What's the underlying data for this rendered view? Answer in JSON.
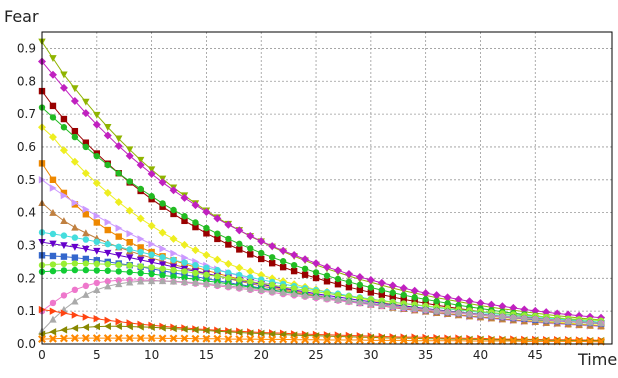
{
  "chart_data": {
    "type": "line",
    "title": "",
    "xlabel": "Time",
    "ylabel": "Fear",
    "xlim": [
      0,
      52
    ],
    "ylim": [
      0,
      0.95
    ],
    "x_ticks": [
      "0",
      "5",
      "10",
      "15",
      "20",
      "25",
      "30",
      "35",
      "40",
      "45"
    ],
    "y_ticks": [
      "0.0",
      "0.1",
      "0.2",
      "0.3",
      "0.4",
      "0.5",
      "0.6",
      "0.7",
      "0.8",
      "0.9"
    ],
    "grid": true,
    "legend": "none",
    "x": [
      0,
      1,
      2,
      3,
      4,
      5,
      6,
      7,
      8,
      9,
      10,
      11,
      12,
      13,
      14,
      15,
      16,
      17,
      18,
      19,
      20,
      21,
      22,
      23,
      24,
      25,
      26,
      27,
      28,
      29,
      30,
      31,
      32,
      33,
      34,
      35,
      36,
      37,
      38,
      39,
      40,
      41,
      42,
      43,
      44,
      45,
      46,
      47,
      48,
      49,
      50,
      51
    ],
    "series": [
      {
        "color": "#8fb400",
        "marker": "triangle-down",
        "values": [
          0.92,
          0.87,
          0.82,
          0.778,
          0.737,
          0.697,
          0.66,
          0.625,
          0.592,
          0.56,
          0.531,
          0.503,
          0.476,
          0.452,
          0.428,
          0.406,
          0.385,
          0.365,
          0.346,
          0.328,
          0.312,
          0.296,
          0.281,
          0.267,
          0.254,
          0.241,
          0.229,
          0.218,
          0.207,
          0.197,
          0.188,
          0.179,
          0.17,
          0.162,
          0.155,
          0.148,
          0.141,
          0.135,
          0.129,
          0.123,
          0.117,
          0.112,
          0.107,
          0.103,
          0.098,
          0.094,
          0.09,
          0.086,
          0.083,
          0.079,
          0.076,
          0.073
        ]
      },
      {
        "color": "#c020c0",
        "marker": "diamond",
        "values": [
          0.86,
          0.82,
          0.78,
          0.74,
          0.703,
          0.668,
          0.635,
          0.603,
          0.573,
          0.545,
          0.518,
          0.492,
          0.468,
          0.445,
          0.423,
          0.402,
          0.382,
          0.363,
          0.346,
          0.329,
          0.313,
          0.298,
          0.284,
          0.271,
          0.258,
          0.246,
          0.234,
          0.224,
          0.213,
          0.204,
          0.195,
          0.186,
          0.178,
          0.17,
          0.162,
          0.155,
          0.149,
          0.142,
          0.136,
          0.13,
          0.125,
          0.12,
          0.115,
          0.11,
          0.105,
          0.101,
          0.097,
          0.093,
          0.09,
          0.086,
          0.083,
          0.08
        ]
      },
      {
        "color": "#990000",
        "marker": "square",
        "values": [
          0.77,
          0.725,
          0.685,
          0.648,
          0.613,
          0.58,
          0.549,
          0.52,
          0.492,
          0.466,
          0.441,
          0.418,
          0.396,
          0.375,
          0.356,
          0.337,
          0.32,
          0.303,
          0.288,
          0.273,
          0.259,
          0.246,
          0.234,
          0.222,
          0.211,
          0.201,
          0.191,
          0.182,
          0.173,
          0.165,
          0.157,
          0.15,
          0.143,
          0.136,
          0.13,
          0.124,
          0.118,
          0.113,
          0.108,
          0.103,
          0.099,
          0.094,
          0.09,
          0.087,
          0.083,
          0.08,
          0.076,
          0.073,
          0.07,
          0.068,
          0.065,
          0.063
        ]
      },
      {
        "color": "#22bb22",
        "marker": "circle",
        "values": [
          0.72,
          0.69,
          0.66,
          0.63,
          0.6,
          0.572,
          0.545,
          0.52,
          0.495,
          0.472,
          0.45,
          0.428,
          0.408,
          0.389,
          0.37,
          0.353,
          0.336,
          0.32,
          0.305,
          0.291,
          0.277,
          0.264,
          0.252,
          0.24,
          0.229,
          0.218,
          0.208,
          0.198,
          0.189,
          0.18,
          0.172,
          0.164,
          0.156,
          0.149,
          0.142,
          0.136,
          0.13,
          0.124,
          0.118,
          0.113,
          0.108,
          0.103,
          0.098,
          0.094,
          0.09,
          0.086,
          0.082,
          0.079,
          0.075,
          0.072,
          0.069,
          0.066
        ]
      },
      {
        "color": "#eeee20",
        "marker": "diamond",
        "values": [
          0.66,
          0.63,
          0.59,
          0.555,
          0.52,
          0.49,
          0.46,
          0.432,
          0.406,
          0.382,
          0.36,
          0.339,
          0.32,
          0.302,
          0.286,
          0.271,
          0.257,
          0.244,
          0.232,
          0.221,
          0.21,
          0.2,
          0.191,
          0.182,
          0.174,
          0.166,
          0.159,
          0.152,
          0.145,
          0.139,
          0.133,
          0.127,
          0.122,
          0.117,
          0.112,
          0.107,
          0.103,
          0.099,
          0.095,
          0.091,
          0.087,
          0.084,
          0.081,
          0.078,
          0.075,
          0.072,
          0.069,
          0.066,
          0.064,
          0.061,
          0.059,
          0.057
        ]
      },
      {
        "color": "#ee8800",
        "marker": "square",
        "values": [
          0.55,
          0.5,
          0.46,
          0.425,
          0.395,
          0.37,
          0.347,
          0.327,
          0.31,
          0.294,
          0.28,
          0.267,
          0.255,
          0.244,
          0.234,
          0.224,
          0.215,
          0.206,
          0.198,
          0.19,
          0.182,
          0.175,
          0.168,
          0.161,
          0.155,
          0.149,
          0.143,
          0.137,
          0.132,
          0.127,
          0.122,
          0.117,
          0.112,
          0.108,
          0.104,
          0.1,
          0.096,
          0.092,
          0.089,
          0.085,
          0.082,
          0.079,
          0.076,
          0.073,
          0.07,
          0.068,
          0.065,
          0.063,
          0.06,
          0.058,
          0.056,
          0.054
        ]
      },
      {
        "color": "#cc99ff",
        "marker": "triangle-right",
        "values": [
          0.5,
          0.475,
          0.452,
          0.43,
          0.41,
          0.39,
          0.371,
          0.353,
          0.336,
          0.32,
          0.304,
          0.29,
          0.276,
          0.263,
          0.251,
          0.239,
          0.228,
          0.217,
          0.207,
          0.198,
          0.189,
          0.18,
          0.172,
          0.165,
          0.157,
          0.151,
          0.144,
          0.138,
          0.132,
          0.126,
          0.121,
          0.116,
          0.111,
          0.106,
          0.102,
          0.098,
          0.094,
          0.09,
          0.087,
          0.083,
          0.08,
          0.077,
          0.074,
          0.071,
          0.068,
          0.066,
          0.063,
          0.061,
          0.059,
          0.057,
          0.055,
          0.053
        ]
      },
      {
        "color": "#c08040",
        "marker": "triangle-up",
        "values": [
          0.43,
          0.4,
          0.375,
          0.355,
          0.338,
          0.322,
          0.308,
          0.295,
          0.283,
          0.272,
          0.262,
          0.252,
          0.242,
          0.233,
          0.224,
          0.215,
          0.207,
          0.199,
          0.191,
          0.184,
          0.177,
          0.17,
          0.164,
          0.157,
          0.151,
          0.146,
          0.14,
          0.135,
          0.13,
          0.125,
          0.12,
          0.116,
          0.111,
          0.107,
          0.103,
          0.099,
          0.095,
          0.092,
          0.088,
          0.085,
          0.082,
          0.079,
          0.076,
          0.073,
          0.07,
          0.068,
          0.065,
          0.063,
          0.061,
          0.059,
          0.057,
          0.055
        ]
      },
      {
        "color": "#44dddd",
        "marker": "circle",
        "values": [
          0.34,
          0.335,
          0.33,
          0.324,
          0.318,
          0.311,
          0.304,
          0.296,
          0.288,
          0.28,
          0.272,
          0.264,
          0.256,
          0.248,
          0.24,
          0.232,
          0.225,
          0.217,
          0.21,
          0.203,
          0.196,
          0.189,
          0.183,
          0.176,
          0.17,
          0.164,
          0.158,
          0.153,
          0.147,
          0.142,
          0.137,
          0.132,
          0.128,
          0.123,
          0.119,
          0.115,
          0.111,
          0.107,
          0.103,
          0.1,
          0.096,
          0.093,
          0.09,
          0.087,
          0.084,
          0.081,
          0.078,
          0.076,
          0.073,
          0.071,
          0.069,
          0.066
        ]
      },
      {
        "color": "#6600cc",
        "marker": "triangle-down",
        "values": [
          0.31,
          0.305,
          0.3,
          0.295,
          0.289,
          0.283,
          0.277,
          0.27,
          0.263,
          0.256,
          0.249,
          0.242,
          0.235,
          0.228,
          0.221,
          0.214,
          0.207,
          0.201,
          0.194,
          0.188,
          0.182,
          0.176,
          0.17,
          0.164,
          0.159,
          0.153,
          0.148,
          0.143,
          0.138,
          0.133,
          0.129,
          0.124,
          0.12,
          0.116,
          0.112,
          0.108,
          0.104,
          0.101,
          0.097,
          0.094,
          0.091,
          0.088,
          0.085,
          0.082,
          0.079,
          0.076,
          0.074,
          0.071,
          0.069,
          0.067,
          0.065,
          0.063
        ]
      },
      {
        "color": "#3366cc",
        "marker": "square",
        "values": [
          0.27,
          0.268,
          0.266,
          0.263,
          0.259,
          0.255,
          0.25,
          0.245,
          0.24,
          0.235,
          0.229,
          0.223,
          0.217,
          0.211,
          0.205,
          0.199,
          0.193,
          0.187,
          0.181,
          0.176,
          0.17,
          0.165,
          0.159,
          0.154,
          0.149,
          0.144,
          0.14,
          0.135,
          0.131,
          0.126,
          0.122,
          0.118,
          0.114,
          0.11,
          0.107,
          0.103,
          0.1,
          0.097,
          0.094,
          0.091,
          0.088,
          0.085,
          0.082,
          0.079,
          0.077,
          0.074,
          0.072,
          0.07,
          0.068,
          0.066,
          0.064,
          0.062
        ]
      },
      {
        "color": "#99ee33",
        "marker": "circle",
        "values": [
          0.24,
          0.242,
          0.244,
          0.245,
          0.245,
          0.244,
          0.243,
          0.241,
          0.239,
          0.236,
          0.233,
          0.229,
          0.225,
          0.221,
          0.216,
          0.211,
          0.206,
          0.201,
          0.196,
          0.19,
          0.185,
          0.18,
          0.174,
          0.169,
          0.164,
          0.159,
          0.154,
          0.149,
          0.145,
          0.14,
          0.136,
          0.132,
          0.127,
          0.123,
          0.12,
          0.116,
          0.112,
          0.109,
          0.105,
          0.102,
          0.099,
          0.096,
          0.093,
          0.09,
          0.087,
          0.085,
          0.082,
          0.08,
          0.077,
          0.075,
          0.073,
          0.071
        ]
      },
      {
        "color": "#11cc33",
        "marker": "circle",
        "values": [
          0.22,
          0.222,
          0.224,
          0.225,
          0.225,
          0.224,
          0.223,
          0.221,
          0.219,
          0.216,
          0.213,
          0.209,
          0.205,
          0.201,
          0.197,
          0.192,
          0.188,
          0.183,
          0.178,
          0.173,
          0.168,
          0.163,
          0.159,
          0.154,
          0.149,
          0.145,
          0.14,
          0.136,
          0.132,
          0.128,
          0.124,
          0.12,
          0.116,
          0.112,
          0.109,
          0.105,
          0.102,
          0.099,
          0.096,
          0.093,
          0.09,
          0.087,
          0.084,
          0.082,
          0.079,
          0.077,
          0.074,
          0.072,
          0.07,
          0.068,
          0.066,
          0.064
        ]
      },
      {
        "color": "#ee77cc",
        "marker": "circle",
        "values": [
          0.1,
          0.125,
          0.148,
          0.165,
          0.177,
          0.186,
          0.191,
          0.194,
          0.195,
          0.195,
          0.194,
          0.192,
          0.19,
          0.187,
          0.184,
          0.181,
          0.177,
          0.173,
          0.169,
          0.165,
          0.161,
          0.157,
          0.152,
          0.148,
          0.144,
          0.14,
          0.136,
          0.132,
          0.128,
          0.124,
          0.12,
          0.116,
          0.113,
          0.109,
          0.106,
          0.103,
          0.1,
          0.097,
          0.094,
          0.091,
          0.088,
          0.085,
          0.083,
          0.08,
          0.078,
          0.076,
          0.073,
          0.071,
          0.069,
          0.067,
          0.065,
          0.063
        ]
      },
      {
        "color": "#aaaaaa",
        "marker": "triangle-up",
        "values": [
          0.04,
          0.075,
          0.105,
          0.13,
          0.15,
          0.165,
          0.176,
          0.183,
          0.188,
          0.191,
          0.192,
          0.192,
          0.191,
          0.189,
          0.187,
          0.184,
          0.181,
          0.177,
          0.173,
          0.169,
          0.165,
          0.161,
          0.157,
          0.153,
          0.148,
          0.144,
          0.14,
          0.136,
          0.132,
          0.128,
          0.124,
          0.12,
          0.116,
          0.113,
          0.109,
          0.106,
          0.102,
          0.099,
          0.096,
          0.093,
          0.09,
          0.087,
          0.085,
          0.082,
          0.08,
          0.077,
          0.075,
          0.073,
          0.07,
          0.068,
          0.066,
          0.064
        ]
      },
      {
        "color": "#ff4411",
        "marker": "triangle-right",
        "values": [
          0.105,
          0.1,
          0.094,
          0.088,
          0.082,
          0.077,
          0.072,
          0.068,
          0.064,
          0.06,
          0.057,
          0.054,
          0.051,
          0.049,
          0.046,
          0.044,
          0.042,
          0.04,
          0.039,
          0.037,
          0.035,
          0.034,
          0.033,
          0.031,
          0.03,
          0.029,
          0.028,
          0.027,
          0.026,
          0.025,
          0.024,
          0.023,
          0.022,
          0.021,
          0.021,
          0.02,
          0.019,
          0.018,
          0.018,
          0.017,
          0.017,
          0.016,
          0.015,
          0.015,
          0.014,
          0.014,
          0.013,
          0.013,
          0.013,
          0.012,
          0.012,
          0.011
        ]
      },
      {
        "color": "#888800",
        "marker": "triangle-left",
        "values": [
          0.03,
          0.037,
          0.043,
          0.048,
          0.051,
          0.053,
          0.054,
          0.054,
          0.053,
          0.052,
          0.051,
          0.049,
          0.047,
          0.045,
          0.043,
          0.041,
          0.039,
          0.037,
          0.035,
          0.033,
          0.032,
          0.03,
          0.029,
          0.027,
          0.026,
          0.025,
          0.024,
          0.023,
          0.022,
          0.021,
          0.02,
          0.019,
          0.018,
          0.018,
          0.017,
          0.016,
          0.016,
          0.015,
          0.015,
          0.014,
          0.014,
          0.013,
          0.013,
          0.012,
          0.012,
          0.012,
          0.011,
          0.011,
          0.011,
          0.01,
          0.01,
          0.01
        ]
      },
      {
        "color": "#ff8800",
        "marker": "cross",
        "values": [
          0.015,
          0.016,
          0.017,
          0.018,
          0.018,
          0.018,
          0.018,
          0.018,
          0.018,
          0.018,
          0.018,
          0.017,
          0.017,
          0.017,
          0.016,
          0.016,
          0.016,
          0.015,
          0.015,
          0.015,
          0.014,
          0.014,
          0.014,
          0.013,
          0.013,
          0.013,
          0.012,
          0.012,
          0.012,
          0.012,
          0.011,
          0.011,
          0.011,
          0.011,
          0.01,
          0.01,
          0.01,
          0.01,
          0.01,
          0.009,
          0.009,
          0.009,
          0.009,
          0.009,
          0.008,
          0.008,
          0.008,
          0.008,
          0.008,
          0.008,
          0.007,
          0.007
        ]
      }
    ]
  }
}
